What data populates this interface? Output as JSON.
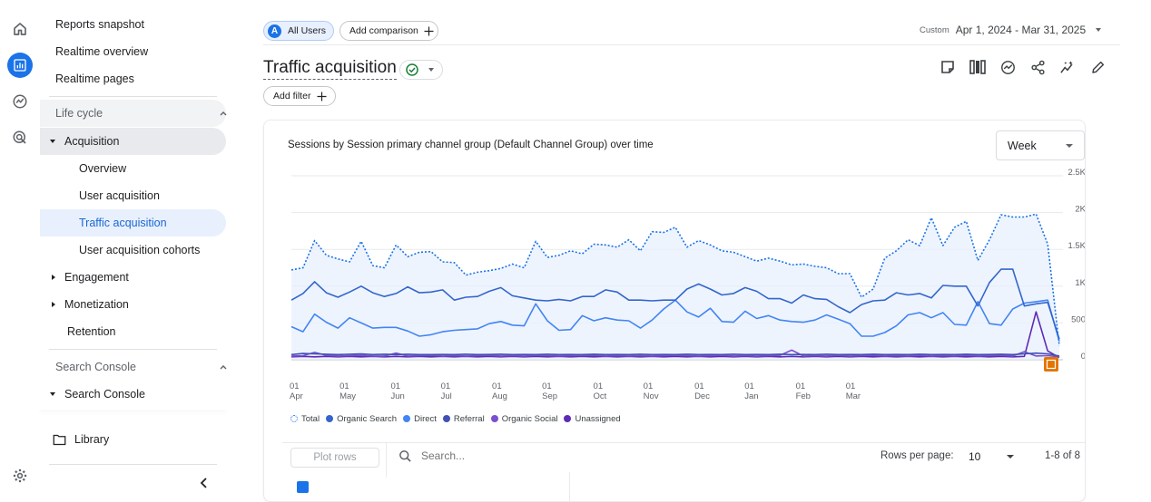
{
  "rail": {
    "icons": [
      "home-icon",
      "reports-icon",
      "explore-icon",
      "advertising-icon"
    ],
    "bottom_icon": "gear-icon"
  },
  "sidebar": {
    "top_items": [
      "Reports snapshot",
      "Realtime overview",
      "Realtime pages"
    ],
    "lifecycle": {
      "label": "Life cycle",
      "acquisition": {
        "label": "Acquisition",
        "children": [
          "Overview",
          "User acquisition",
          "Traffic acquisition",
          "User acquisition cohorts"
        ],
        "active_index": 2
      },
      "engagement": "Engagement",
      "monetization": "Monetization",
      "retention": "Retention"
    },
    "search_console": {
      "label": "Search Console",
      "item": "Search Console"
    },
    "library": "Library"
  },
  "header": {
    "segment_badge": "A",
    "segment_label": "All Users",
    "add_comparison": "Add comparison",
    "date_prefix": "Custom",
    "date_range": "Apr 1, 2024 - Mar 31, 2025",
    "title": "Traffic acquisition",
    "add_filter": "Add filter"
  },
  "chart_card": {
    "title": "Sessions by Session primary channel group (Default Channel Group) over time",
    "interval": "Week"
  },
  "chart_data": {
    "type": "line",
    "title": "Sessions by Session primary channel group (Default Channel Group) over time",
    "y_ticks": [
      "2.5K",
      "2K",
      "1.5K",
      "1K",
      "500",
      "0"
    ],
    "ylim": [
      0,
      2500
    ],
    "x_ticks": [
      [
        "01",
        "Apr"
      ],
      [
        "01",
        "May"
      ],
      [
        "01",
        "Jun"
      ],
      [
        "01",
        "Jul"
      ],
      [
        "01",
        "Aug"
      ],
      [
        "01",
        "Sep"
      ],
      [
        "01",
        "Oct"
      ],
      [
        "01",
        "Nov"
      ],
      [
        "01",
        "Dec"
      ],
      [
        "01",
        "Jan"
      ],
      [
        "01",
        "Feb"
      ],
      [
        "01",
        "Mar"
      ]
    ],
    "x_tick_week_index": [
      0,
      4.3,
      8.7,
      13,
      17.4,
      21.7,
      26.1,
      30.4,
      34.8,
      39.1,
      43.5,
      47.8
    ],
    "series": [
      {
        "name": "Total",
        "color": "#1a73e8",
        "dashed": true,
        "fill": true,
        "values": [
          1220,
          1250,
          1620,
          1420,
          1370,
          1330,
          1610,
          1280,
          1250,
          1560,
          1400,
          1460,
          1470,
          1330,
          1320,
          1150,
          1190,
          1210,
          1240,
          1300,
          1250,
          1610,
          1390,
          1420,
          1480,
          1440,
          1570,
          1560,
          1530,
          1630,
          1480,
          1740,
          1730,
          1800,
          1530,
          1620,
          1560,
          1480,
          1460,
          1400,
          1340,
          1380,
          1340,
          1290,
          1300,
          1270,
          1250,
          1170,
          1170,
          850,
          960,
          1380,
          1480,
          1630,
          1550,
          1930,
          1550,
          1800,
          1880,
          1350,
          1630,
          1970,
          1940,
          1940,
          1980,
          1570,
          190
        ]
      },
      {
        "name": "Organic Search",
        "color": "#3366cc",
        "dashed": false,
        "fill": false,
        "values": [
          810,
          900,
          1060,
          910,
          850,
          920,
          1000,
          910,
          860,
          900,
          990,
          910,
          920,
          950,
          810,
          850,
          860,
          930,
          980,
          870,
          840,
          810,
          800,
          820,
          800,
          860,
          860,
          950,
          920,
          810,
          810,
          800,
          810,
          810,
          960,
          1030,
          960,
          880,
          900,
          980,
          930,
          830,
          830,
          770,
          880,
          830,
          820,
          720,
          640,
          750,
          800,
          810,
          910,
          880,
          900,
          840,
          1010,
          1000,
          1000,
          730,
          1050,
          1230,
          1230,
          730,
          760,
          780,
          280
        ]
      },
      {
        "name": "Direct",
        "color": "#4285f4",
        "dashed": false,
        "fill": false,
        "values": [
          450,
          380,
          620,
          510,
          430,
          570,
          500,
          430,
          440,
          440,
          390,
          320,
          340,
          380,
          400,
          410,
          420,
          490,
          520,
          470,
          460,
          760,
          530,
          400,
          410,
          600,
          530,
          570,
          540,
          530,
          430,
          540,
          690,
          810,
          650,
          580,
          700,
          520,
          510,
          660,
          560,
          600,
          540,
          520,
          510,
          540,
          610,
          550,
          490,
          320,
          320,
          370,
          460,
          610,
          640,
          570,
          640,
          480,
          470,
          790,
          490,
          470,
          690,
          770,
          790,
          810,
          250
        ]
      },
      {
        "name": "Referral",
        "color": "#3f51b5",
        "dashed": false,
        "fill": false,
        "values": [
          70,
          85,
          80,
          75,
          70,
          75,
          80,
          70,
          75,
          70,
          75,
          70,
          70,
          72,
          70,
          75,
          70,
          72,
          75,
          70,
          72,
          70,
          75,
          70,
          72,
          70,
          75,
          70,
          72,
          70,
          75,
          70,
          72,
          70,
          75,
          70,
          72,
          70,
          75,
          70,
          72,
          70,
          75,
          70,
          72,
          70,
          75,
          70,
          72,
          70,
          75,
          70,
          72,
          70,
          75,
          70,
          72,
          70,
          75,
          70,
          72,
          75,
          70,
          80,
          90,
          80,
          50
        ]
      },
      {
        "name": "Organic Social",
        "color": "#7b4fcf",
        "dashed": false,
        "fill": false,
        "values": [
          50,
          55,
          100,
          60,
          50,
          55,
          60,
          50,
          50,
          90,
          50,
          55,
          60,
          50,
          55,
          50,
          55,
          60,
          50,
          55,
          50,
          60,
          55,
          50,
          55,
          55,
          60,
          50,
          55,
          50,
          55,
          50,
          55,
          60,
          55,
          50,
          55,
          60,
          50,
          55,
          50,
          55,
          60,
          130,
          50,
          55,
          50,
          60,
          50,
          55,
          60,
          50,
          55,
          50,
          60,
          50,
          55,
          50,
          60,
          50,
          55,
          60,
          50,
          110,
          50,
          55,
          40
        ]
      },
      {
        "name": "Unassigned",
        "color": "#5e2bb3",
        "dashed": false,
        "fill": false,
        "values": [
          40,
          45,
          40,
          45,
          40,
          45,
          40,
          45,
          40,
          45,
          40,
          45,
          40,
          45,
          40,
          45,
          40,
          45,
          40,
          45,
          40,
          45,
          40,
          45,
          40,
          45,
          40,
          45,
          40,
          45,
          40,
          45,
          40,
          45,
          40,
          45,
          40,
          45,
          40,
          45,
          40,
          45,
          40,
          45,
          40,
          45,
          40,
          45,
          40,
          45,
          40,
          45,
          40,
          45,
          40,
          45,
          40,
          45,
          40,
          45,
          40,
          45,
          40,
          45,
          650,
          120,
          30
        ]
      }
    ]
  },
  "table_bar": {
    "plot_rows": "Plot rows",
    "search_placeholder": "Search...",
    "rows_per_page_label": "Rows per page:",
    "rows_per_page_value": "10",
    "pagination": "1-8 of 8"
  }
}
